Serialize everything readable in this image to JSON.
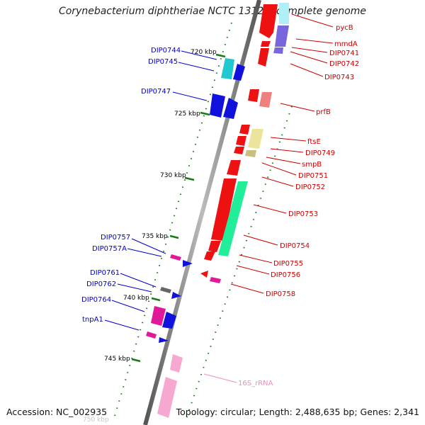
{
  "title": "Corynebacterium diphtheriae NCTC 13129, complete genome",
  "footer": {
    "accession": "Accession: NC_002935",
    "topology": "Topology: circular; Length: 2,488,635 bp; Genes: 2,341"
  },
  "colors": {
    "backbone": "#8a8a8a",
    "minor_tick": "#1a7a1a",
    "forward_label": "#cc0000",
    "reverse_label": "#0000cc",
    "rrna_label": "#f08cc0",
    "red_gene": "#ee1111",
    "blue_gene": "#1111dd",
    "cyan_gene": "#20c8d0",
    "magenta_gene": "#e0199a",
    "pink_gene": "#f7a8d0",
    "yellow_gene": "#ece49a",
    "olive_gene": "#c8bf80",
    "purple_gene": "#7766dd",
    "salmon_gene": "#ee8080",
    "green_gene": "#22ee99",
    "grey_gene": "#666666"
  },
  "ticks": [
    "720 kbp",
    "725 kbp",
    "730 kbp",
    "735 kbp",
    "740 kbp",
    "745 kbp",
    "750 kbp"
  ],
  "genes_forward": [
    {
      "name": "pycB",
      "color": "red_gene"
    },
    {
      "name": "mmdA",
      "color": "purple_gene"
    },
    {
      "name": "DIP0741",
      "color": "red_gene"
    },
    {
      "name": "DIP0742",
      "color": "purple_gene"
    },
    {
      "name": "DIP0743",
      "color": "red_gene"
    },
    {
      "name": "prfB",
      "color": "salmon_gene"
    },
    {
      "name": "ftsE",
      "color": "yellow_gene"
    },
    {
      "name": "DIP0749",
      "color": "red_gene"
    },
    {
      "name": "smpB",
      "color": "olive_gene"
    },
    {
      "name": "DIP0751",
      "color": "red_gene"
    },
    {
      "name": "DIP0752",
      "color": "red_gene"
    },
    {
      "name": "DIP0753",
      "color": "red_gene"
    },
    {
      "name": "DIP0754",
      "color": "green_gene"
    },
    {
      "name": "DIP0755",
      "color": "red_gene"
    },
    {
      "name": "DIP0756",
      "color": "red_gene"
    },
    {
      "name": "DIP0758",
      "color": "magenta_gene"
    }
  ],
  "genes_reverse": [
    {
      "name": "DIP0744",
      "color": "cyan_gene"
    },
    {
      "name": "DIP0745",
      "color": "blue_gene"
    },
    {
      "name": "DIP0747",
      "color": "blue_gene"
    },
    {
      "name": "DIP0757",
      "color": "magenta_gene"
    },
    {
      "name": "DIP0757A",
      "color": "blue_gene"
    },
    {
      "name": "DIP0761",
      "color": "grey_gene"
    },
    {
      "name": "DIP0762",
      "color": "blue_gene"
    },
    {
      "name": "DIP0764",
      "color": "magenta_gene"
    },
    {
      "name": "tnpA1",
      "color": "blue_gene"
    }
  ],
  "rrna": [
    {
      "name": "16S_rRNA",
      "color": "pink_gene"
    }
  ]
}
